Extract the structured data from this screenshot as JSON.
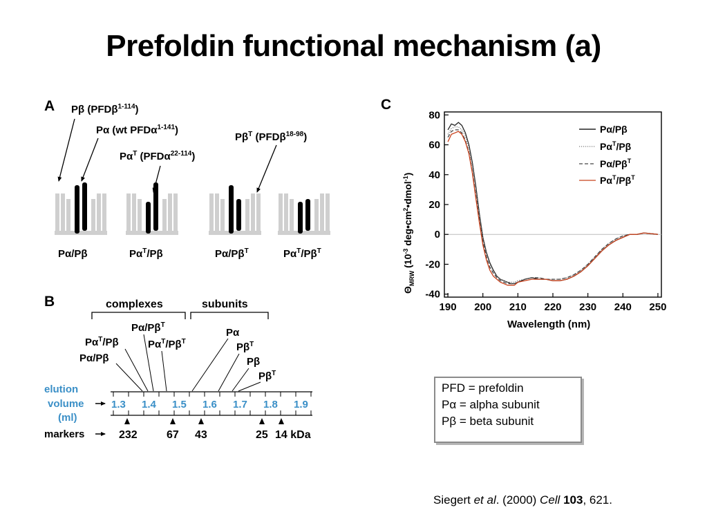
{
  "slide": {
    "title": "Prefoldin functional mechanism (a)"
  },
  "panel_a": {
    "label": "A",
    "callouts": {
      "pbeta_base": "Pβ (PFDβ",
      "pbeta_sup": "1-114",
      "palpha_base": "Pα (wt PFDα",
      "palpha_sup": "1-141",
      "palphaT_a": "Pα",
      "palphaT_sup1": "T",
      "palphaT_b": " (PFDα",
      "palphaT_sup2": "22-114",
      "pbetaT_a": "Pβ",
      "pbetaT_sup1": "T",
      "pbetaT_b": " (PFDβ",
      "pbetaT_sup2": "18-98"
    },
    "complex_labels": [
      {
        "a": "Pα/Pβ",
        "sup1": "",
        "b": "",
        "sup2": ""
      },
      {
        "a": "Pα",
        "sup1": "T",
        "b": "/Pβ",
        "sup2": ""
      },
      {
        "a": "Pα/Pβ",
        "sup1": "T",
        "b": "",
        "sup2": ""
      },
      {
        "a": "Pα",
        "sup1": "T",
        "b": "/Pβ",
        "sup2": "T"
      }
    ]
  },
  "panel_b": {
    "label": "B",
    "group_complexes": "complexes",
    "group_subunits": "subunits",
    "species": [
      {
        "a": "Pα/Pβ",
        "sup1": "T",
        "b": "",
        "sup2": ""
      },
      {
        "a": "Pα",
        "sup1": "T",
        "b": "/Pβ",
        "sup2": ""
      },
      {
        "a": "Pα/Pβ",
        "sup1": "",
        "b": "",
        "sup2": ""
      },
      {
        "a": "Pα",
        "sup1": "T",
        "b": "/Pβ",
        "sup2": "T"
      },
      {
        "a": "Pα",
        "sup1": "",
        "b": "",
        "sup2": ""
      },
      {
        "a": "Pβ",
        "sup1": "T",
        "b": "",
        "sup2": ""
      },
      {
        "a": "Pβ",
        "sup1": "",
        "b": "",
        "sup2": ""
      },
      {
        "a": "Pβ",
        "sup1": "T",
        "b": "",
        "sup2": ""
      }
    ],
    "elution_label_1": "elution",
    "elution_label_2": "volume",
    "elution_label_3": "(ml)",
    "elution_ticks": [
      "1.3",
      "1.4",
      "1.5",
      "1.6",
      "1.7",
      "1.8",
      "1.9"
    ],
    "markers_label": "markers",
    "markers": [
      "232",
      "67",
      "43",
      "25",
      "14 kDa"
    ],
    "colors": {
      "elution_text": "#3a8fc7"
    }
  },
  "panel_c": {
    "label": "C",
    "chart_data": {
      "type": "line",
      "xlabel": "Wavelength (nm)",
      "ylabel_parts": {
        "a": "Θ",
        "sub": "MRW",
        "b": " (10",
        "sup1": "-3",
        "c": " deg•cm",
        "sup2": "2",
        "d": "•dmol",
        "sup3": "-1",
        "e": ")"
      },
      "xlim": [
        189,
        251
      ],
      "ylim": [
        -42,
        82
      ],
      "x_ticks": [
        "190",
        "200",
        "210",
        "220",
        "230",
        "240",
        "250"
      ],
      "y_ticks": [
        "80",
        "60",
        "40",
        "20",
        "0",
        "-20",
        "-40"
      ],
      "zero_line": true,
      "legend_position": "top-right",
      "series": [
        {
          "name": "Pα/Pβ",
          "label_a": "Pα/Pβ",
          "sup1": "",
          "label_b": "",
          "sup2": "",
          "color": "#222222",
          "dash": "",
          "x": [
            190,
            191,
            192,
            193,
            194,
            195,
            196,
            197,
            198,
            199,
            200,
            201,
            202,
            203,
            204,
            205,
            206,
            207,
            208,
            209,
            210,
            212,
            214,
            216,
            218,
            220,
            222,
            224,
            226,
            228,
            230,
            232,
            234,
            236,
            238,
            240,
            242,
            244,
            246,
            248,
            250
          ],
          "y": [
            70,
            74,
            73,
            75,
            73,
            68,
            60,
            48,
            32,
            14,
            -2,
            -12,
            -19,
            -24,
            -28,
            -30,
            -31,
            -32,
            -33,
            -33,
            -32,
            -30,
            -29,
            -30,
            -30,
            -31,
            -31,
            -30,
            -28,
            -25,
            -21,
            -16,
            -11,
            -7,
            -4,
            -2,
            0,
            0,
            1,
            0.5,
            0
          ]
        },
        {
          "name": "PαT/Pβ",
          "label_a": "Pα",
          "sup1": "T",
          "label_b": "/Pβ",
          "sup2": "",
          "color": "#7a7a7a",
          "dash": "1.2,1.8",
          "x": [
            190,
            191,
            192,
            193,
            194,
            195,
            196,
            197,
            198,
            199,
            200,
            201,
            202,
            203,
            204,
            205,
            206,
            207,
            208,
            209,
            210,
            212,
            214,
            216,
            218,
            220,
            222,
            224,
            226,
            228,
            230,
            232,
            234,
            236,
            238,
            240,
            242,
            244,
            246,
            248,
            250
          ],
          "y": [
            67,
            71,
            72,
            72,
            70,
            66,
            58,
            46,
            30,
            13,
            -3,
            -13,
            -20,
            -25,
            -28,
            -30,
            -31,
            -32,
            -32,
            -32,
            -31,
            -30,
            -29,
            -29,
            -30,
            -30,
            -30,
            -29,
            -27,
            -24,
            -20,
            -15,
            -10,
            -6,
            -3,
            -1,
            0,
            0,
            1,
            0.5,
            0
          ]
        },
        {
          "name": "Pα/PβT",
          "label_a": "Pα/Pβ",
          "sup1": "T",
          "label_b": "",
          "sup2": "",
          "color": "#444444",
          "dash": "5,3",
          "x": [
            190,
            191,
            192,
            193,
            194,
            195,
            196,
            197,
            198,
            199,
            200,
            201,
            202,
            203,
            204,
            205,
            206,
            207,
            208,
            209,
            210,
            212,
            214,
            216,
            218,
            220,
            222,
            224,
            226,
            228,
            230,
            232,
            234,
            236,
            238,
            240,
            242,
            244,
            246,
            248,
            250
          ],
          "y": [
            65,
            69,
            70,
            70,
            68,
            63,
            55,
            42,
            26,
            10,
            -5,
            -15,
            -22,
            -26,
            -29,
            -31,
            -32,
            -33,
            -33,
            -33,
            -32,
            -30,
            -29,
            -29,
            -30,
            -30,
            -30,
            -29,
            -27,
            -24,
            -20,
            -15,
            -10,
            -6,
            -3,
            -1,
            0,
            0,
            1,
            0.5,
            0
          ]
        },
        {
          "name": "PαT/PβT",
          "label_a": "Pα",
          "sup1": "T",
          "label_b": "/Pβ",
          "sup2": "T",
          "color": "#c8401a",
          "dash": "",
          "x": [
            190,
            191,
            192,
            193,
            194,
            195,
            196,
            197,
            198,
            199,
            200,
            201,
            202,
            203,
            204,
            205,
            206,
            207,
            208,
            209,
            210,
            212,
            214,
            216,
            218,
            220,
            222,
            224,
            226,
            228,
            230,
            232,
            234,
            236,
            238,
            240,
            242,
            244,
            246,
            248,
            250
          ],
          "y": [
            62,
            67,
            68,
            69,
            67,
            62,
            54,
            41,
            24,
            8,
            -7,
            -17,
            -24,
            -28,
            -30,
            -32,
            -33,
            -34,
            -34,
            -34,
            -32,
            -31,
            -30,
            -30,
            -30,
            -31,
            -31,
            -30,
            -28,
            -25,
            -21,
            -16,
            -11,
            -7,
            -4,
            -2,
            0,
            0,
            1,
            0.5,
            0
          ]
        }
      ]
    }
  },
  "infobox": {
    "line1": "PFD = prefoldin",
    "line2": "Pα = alpha subunit",
    "line3": "Pβ = beta subunit"
  },
  "citation": {
    "authors": "Siegert ",
    "etal": "et al",
    "year": ". (2000) ",
    "journal": "Cell",
    "volume": "103",
    "pages": ", 621."
  }
}
